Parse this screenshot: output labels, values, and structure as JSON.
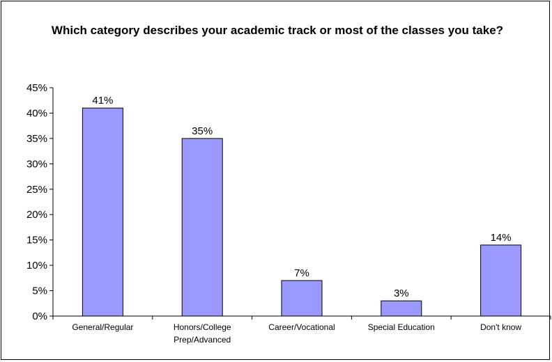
{
  "chart_data": {
    "type": "bar",
    "title": "Which category describes your academic track or most of the classes you take?",
    "xlabel": "",
    "ylabel": "",
    "categories": [
      [
        "General/Regular"
      ],
      [
        "Honors/College",
        "Prep/Advanced"
      ],
      [
        "Career/Vocational"
      ],
      [
        "Special Education"
      ],
      [
        "Don't know"
      ]
    ],
    "values": [
      41,
      35,
      7,
      3,
      14
    ],
    "data_labels": [
      "41%",
      "35%",
      "7%",
      "3%",
      "14%"
    ],
    "ylim": [
      0,
      45
    ],
    "yticks": [
      0,
      5,
      10,
      15,
      20,
      25,
      30,
      35,
      40,
      45
    ],
    "ytick_labels": [
      "0%",
      "5%",
      "10%",
      "15%",
      "20%",
      "25%",
      "30%",
      "35%",
      "40%",
      "45%"
    ],
    "grid": false,
    "legend": "none",
    "bar_color": "#9999FF",
    "bar_edge_color": "#000000"
  }
}
